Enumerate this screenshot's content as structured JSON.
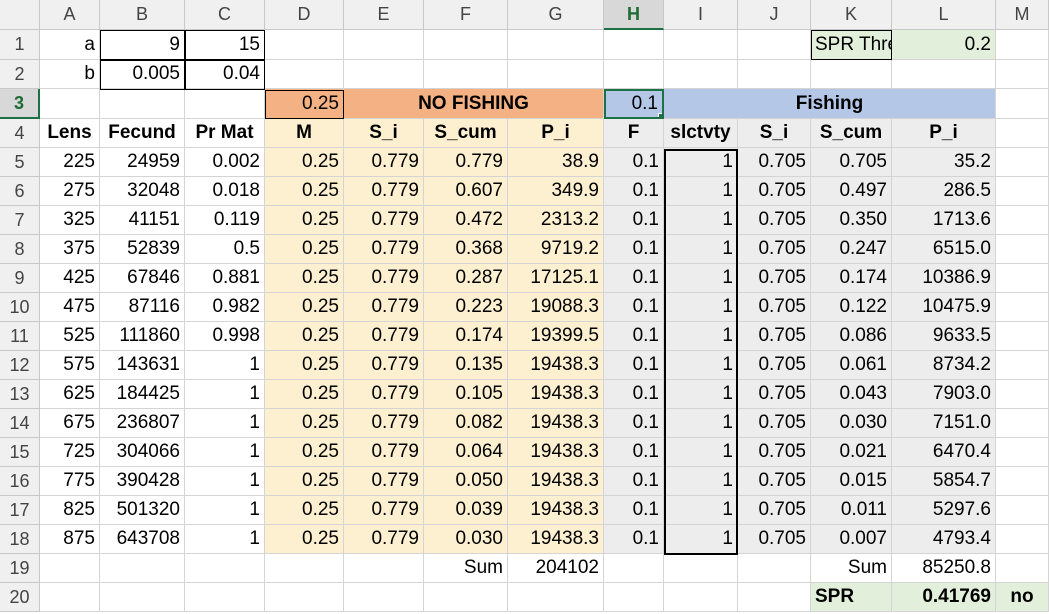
{
  "columns": [
    "A",
    "B",
    "C",
    "D",
    "E",
    "F",
    "G",
    "H",
    "I",
    "J",
    "K",
    "L",
    "M"
  ],
  "row_numbers": [
    "1",
    "2",
    "3",
    "4",
    "5",
    "6",
    "7",
    "8",
    "9",
    "10",
    "11",
    "12",
    "13",
    "14",
    "15",
    "16",
    "17",
    "18",
    "19",
    "20"
  ],
  "selected_column": "H",
  "selected_row": "3",
  "params": {
    "a_label": "a",
    "a_b": "9",
    "a_c": "15",
    "b_label": "b",
    "b_b": "0.005",
    "b_c": "0.04",
    "spr_threshold_label": "SPR Threshold =",
    "spr_threshold_value": "0.2"
  },
  "row3": {
    "m_value": "0.25",
    "no_fishing_label": "NO FISHING",
    "f_value": "0.1",
    "fishing_label": "Fishing"
  },
  "headers": [
    "Lens",
    "Fecund",
    "Pr Mat",
    "M",
    "S_i",
    "S_cum",
    "P_i",
    "F",
    "slctvty",
    "S_i",
    "S_cum",
    "P_i"
  ],
  "rows": [
    [
      "225",
      "24959",
      "0.002",
      "0.25",
      "0.779",
      "0.779",
      "38.9",
      "0.1",
      "1",
      "0.705",
      "0.705",
      "35.2"
    ],
    [
      "275",
      "32048",
      "0.018",
      "0.25",
      "0.779",
      "0.607",
      "349.9",
      "0.1",
      "1",
      "0.705",
      "0.497",
      "286.5"
    ],
    [
      "325",
      "41151",
      "0.119",
      "0.25",
      "0.779",
      "0.472",
      "2313.2",
      "0.1",
      "1",
      "0.705",
      "0.350",
      "1713.6"
    ],
    [
      "375",
      "52839",
      "0.5",
      "0.25",
      "0.779",
      "0.368",
      "9719.2",
      "0.1",
      "1",
      "0.705",
      "0.247",
      "6515.0"
    ],
    [
      "425",
      "67846",
      "0.881",
      "0.25",
      "0.779",
      "0.287",
      "17125.1",
      "0.1",
      "1",
      "0.705",
      "0.174",
      "10386.9"
    ],
    [
      "475",
      "87116",
      "0.982",
      "0.25",
      "0.779",
      "0.223",
      "19088.3",
      "0.1",
      "1",
      "0.705",
      "0.122",
      "10475.9"
    ],
    [
      "525",
      "111860",
      "0.998",
      "0.25",
      "0.779",
      "0.174",
      "19399.5",
      "0.1",
      "1",
      "0.705",
      "0.086",
      "9633.5"
    ],
    [
      "575",
      "143631",
      "1",
      "0.25",
      "0.779",
      "0.135",
      "19438.3",
      "0.1",
      "1",
      "0.705",
      "0.061",
      "8734.2"
    ],
    [
      "625",
      "184425",
      "1",
      "0.25",
      "0.779",
      "0.105",
      "19438.3",
      "0.1",
      "1",
      "0.705",
      "0.043",
      "7903.0"
    ],
    [
      "675",
      "236807",
      "1",
      "0.25",
      "0.779",
      "0.082",
      "19438.3",
      "0.1",
      "1",
      "0.705",
      "0.030",
      "7151.0"
    ],
    [
      "725",
      "304066",
      "1",
      "0.25",
      "0.779",
      "0.064",
      "19438.3",
      "0.1",
      "1",
      "0.705",
      "0.021",
      "6470.4"
    ],
    [
      "775",
      "390428",
      "1",
      "0.25",
      "0.779",
      "0.050",
      "19438.3",
      "0.1",
      "1",
      "0.705",
      "0.015",
      "5854.7"
    ],
    [
      "825",
      "501320",
      "1",
      "0.25",
      "0.779",
      "0.039",
      "19438.3",
      "0.1",
      "1",
      "0.705",
      "0.011",
      "5297.6"
    ],
    [
      "875",
      "643708",
      "1",
      "0.25",
      "0.779",
      "0.030",
      "19438.3",
      "0.1",
      "1",
      "0.705",
      "0.007",
      "4793.4"
    ]
  ],
  "sums": {
    "sum_label_f": "Sum",
    "sum_value_g": "204102",
    "sum_label_k": "Sum",
    "sum_value_l": "85250.8"
  },
  "spr": {
    "label": "SPR",
    "value": "0.41769",
    "flag": "no"
  },
  "colors": {
    "orange": "#f4b183",
    "peach": "#fdf0d0",
    "gray": "#ededed",
    "blue": "#b4c7e7",
    "green": "#e2efda",
    "selection": "#1e7145"
  }
}
